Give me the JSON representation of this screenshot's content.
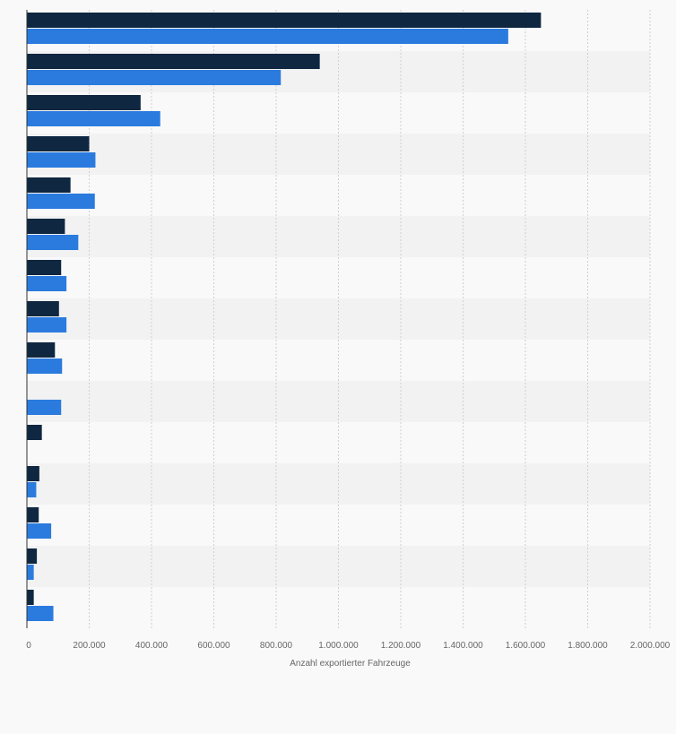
{
  "chart_data": {
    "type": "bar",
    "orientation": "horizontal",
    "categories_count": 15,
    "series": [
      {
        "values": [
          1650000,
          940000,
          365000,
          200000,
          140000,
          122000,
          110000,
          103000,
          90000,
          0,
          48000,
          40000,
          38000,
          32000,
          22000
        ],
        "color": "#0f2741"
      },
      {
        "values": [
          1545000,
          815000,
          428000,
          220000,
          218000,
          165000,
          127000,
          127000,
          113000,
          110000,
          0,
          30000,
          78000,
          22000,
          85000
        ],
        "color": "#2b7bdf"
      }
    ],
    "xlabel": "Anzahl exportierter Fahrzeuge",
    "xlim": [
      0,
      2000000
    ],
    "xticks": [
      0,
      200000,
      400000,
      600000,
      800000,
      1000000,
      1200000,
      1400000,
      1600000,
      1800000,
      2000000
    ],
    "xtick_labels": [
      "0",
      "200.000",
      "400.000",
      "600.000",
      "800.000",
      "1.000.000",
      "1.200.000",
      "1.400.000",
      "1.600.000",
      "1.800.000",
      "2.000.000"
    ],
    "grid": true,
    "legend": "none"
  },
  "colors": {
    "background": "#f9f9f9",
    "band_alt": "#f2f2f2",
    "gridline": "#d0d0d0",
    "axis": "#333333"
  }
}
